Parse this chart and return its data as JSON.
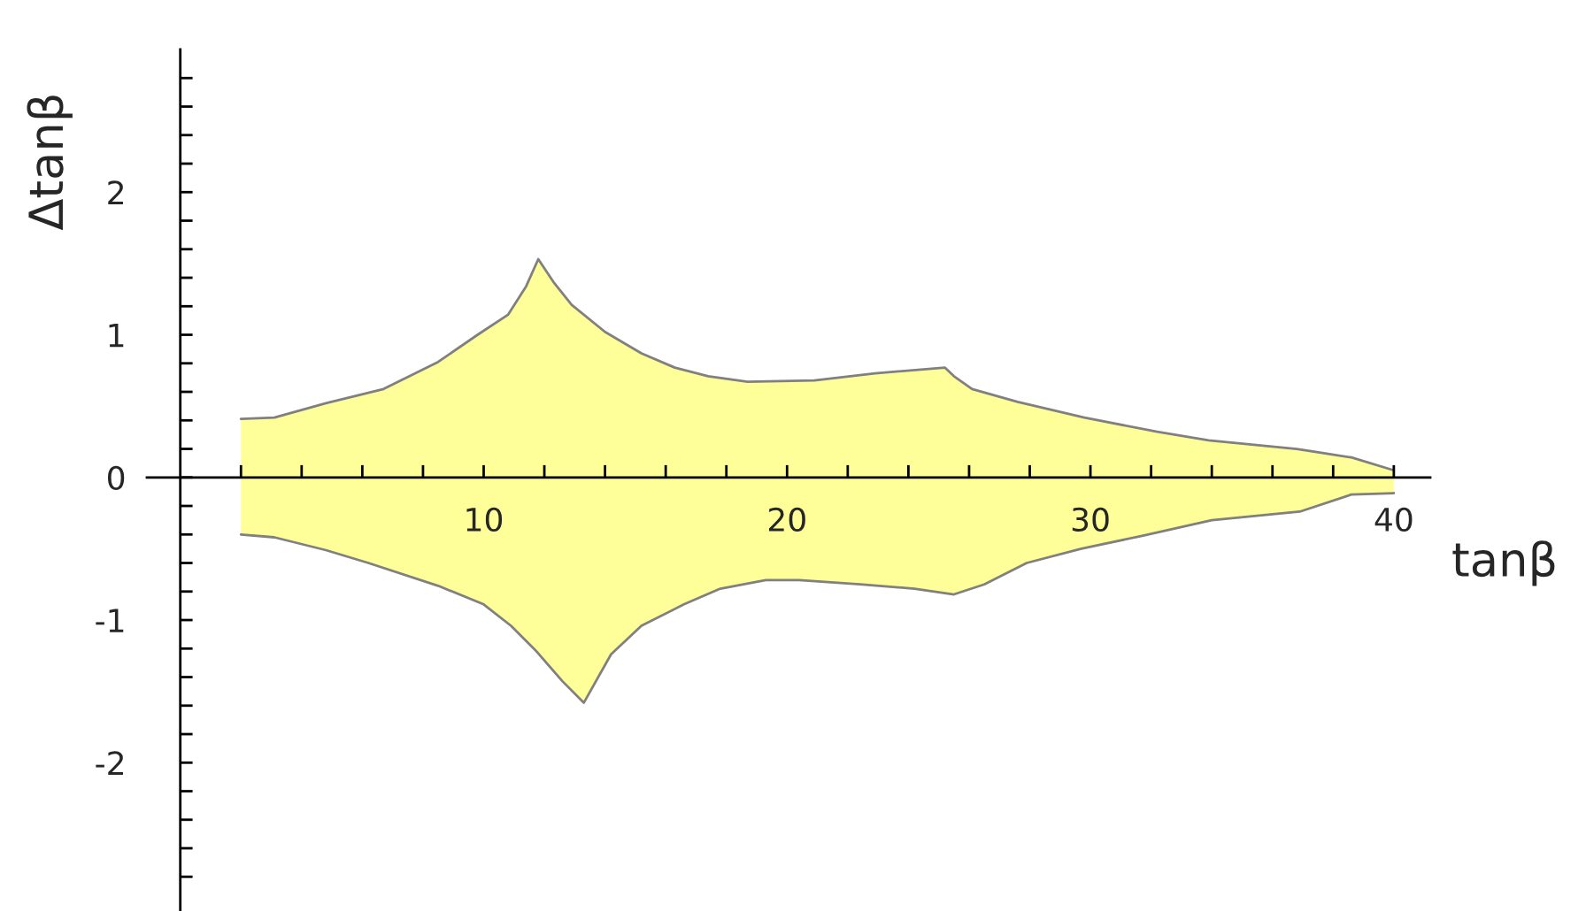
{
  "chart_data": {
    "type": "area",
    "xlabel": "tanβ",
    "ylabel": "Δtanβ",
    "xlim": [
      -1.1,
      41.2
    ],
    "ylim": [
      -3.04,
      3.0
    ],
    "xticks": [
      {
        "value": 2,
        "label": null
      },
      {
        "value": 4,
        "label": null
      },
      {
        "value": 6,
        "label": null
      },
      {
        "value": 8,
        "label": null
      },
      10,
      {
        "value": 12,
        "label": null
      },
      {
        "value": 14,
        "label": null
      },
      {
        "value": 16,
        "label": null
      },
      {
        "value": 18,
        "label": null
      },
      20,
      {
        "value": 22,
        "label": null
      },
      {
        "value": 24,
        "label": null
      },
      {
        "value": 26,
        "label": null
      },
      {
        "value": 28,
        "label": null
      },
      30,
      {
        "value": 32,
        "label": null
      },
      {
        "value": 34,
        "label": null
      },
      {
        "value": 36,
        "label": null
      },
      {
        "value": 38,
        "label": null
      },
      40
    ],
    "yticks": [
      {
        "value": -2.8,
        "label": null
      },
      {
        "value": -2.6,
        "label": null
      },
      {
        "value": -2.4,
        "label": null
      },
      {
        "value": -2.2,
        "label": null
      },
      -2,
      {
        "value": -1.8,
        "label": null
      },
      {
        "value": -1.6,
        "label": null
      },
      {
        "value": -1.4,
        "label": null
      },
      {
        "value": -1.2,
        "label": null
      },
      -1,
      {
        "value": -0.8,
        "label": null
      },
      {
        "value": -0.6,
        "label": null
      },
      {
        "value": -0.4,
        "label": null
      },
      {
        "value": -0.2,
        "label": null
      },
      0,
      {
        "value": 0.2,
        "label": null
      },
      {
        "value": 0.4,
        "label": null
      },
      {
        "value": 0.6,
        "label": null
      },
      {
        "value": 0.8,
        "label": null
      },
      1,
      {
        "value": 1.2,
        "label": null
      },
      {
        "value": 1.4,
        "label": null
      },
      {
        "value": 1.6,
        "label": null
      },
      {
        "value": 1.8,
        "label": null
      },
      2,
      {
        "value": 2.2,
        "label": null
      },
      {
        "value": 2.4,
        "label": null
      },
      {
        "value": 2.6,
        "label": null
      },
      {
        "value": 2.8,
        "label": null
      }
    ],
    "grid": false,
    "legend": false,
    "series": [
      {
        "color": "#ffff99",
        "x": [
          2,
          3.1,
          4.8,
          6.7,
          8.5,
          9.8,
          10.8,
          11.4,
          11.8,
          12.3,
          12.9,
          14.0,
          15.2,
          16.3,
          17.4,
          18.7,
          20.9,
          22.9,
          25.2,
          25.5,
          26.1,
          27.6,
          29.8,
          32.2,
          33.9,
          36.8,
          38.6,
          40
        ],
        "values": [
          0.41,
          0.42,
          0.52,
          0.62,
          0.81,
          1.0,
          1.14,
          1.34,
          1.53,
          1.37,
          1.21,
          1.02,
          0.87,
          0.77,
          0.71,
          0.67,
          0.68,
          0.73,
          0.77,
          0.71,
          0.62,
          0.53,
          0.42,
          0.32,
          0.26,
          0.2,
          0.14,
          0.05
        ]
      },
      {
        "color": "#ffff99",
        "x": [
          2,
          3.1,
          4.8,
          6.2,
          8.5,
          10.0,
          10.9,
          11.7,
          12.6,
          13.3,
          14.2,
          15.2,
          16.6,
          17.8,
          19.3,
          20.4,
          22.4,
          24.2,
          25.5,
          26.5,
          27.9,
          29.7,
          31.7,
          34.0,
          36.9,
          38.6,
          40
        ],
        "values": [
          -0.4,
          -0.42,
          -0.51,
          -0.6,
          -0.76,
          -0.89,
          -1.04,
          -1.21,
          -1.43,
          -1.58,
          -1.24,
          -1.04,
          -0.89,
          -0.78,
          -0.72,
          -0.72,
          -0.75,
          -0.78,
          -0.82,
          -0.75,
          -0.6,
          -0.5,
          -0.41,
          -0.3,
          -0.24,
          -0.12,
          -0.11
        ]
      }
    ]
  }
}
